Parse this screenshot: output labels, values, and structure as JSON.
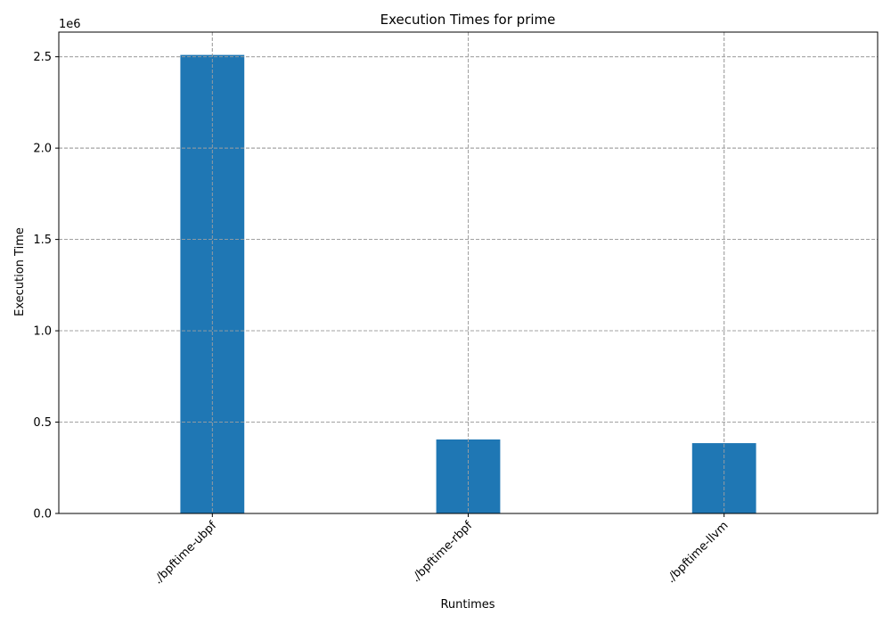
{
  "chart_data": {
    "type": "bar",
    "title": "Execution Times for prime",
    "xlabel": "Runtimes",
    "ylabel": "Execution Time",
    "categories": [
      "./bpftime-ubpf",
      "./bpftime-rbpf",
      "./bpftime-llvm"
    ],
    "values": [
      2510000,
      405000,
      385000
    ],
    "y_offset_label": "1e6",
    "y_ticks": [
      0,
      500000,
      1000000,
      1500000,
      2000000,
      2500000
    ],
    "y_tick_labels": [
      "0.0",
      "0.5",
      "1.0",
      "1.5",
      "2.0",
      "2.5"
    ],
    "ylim": [
      0,
      2635000
    ],
    "grid": true,
    "bar_color": "#1f77b4",
    "grid_color": "#a0a0a0"
  }
}
